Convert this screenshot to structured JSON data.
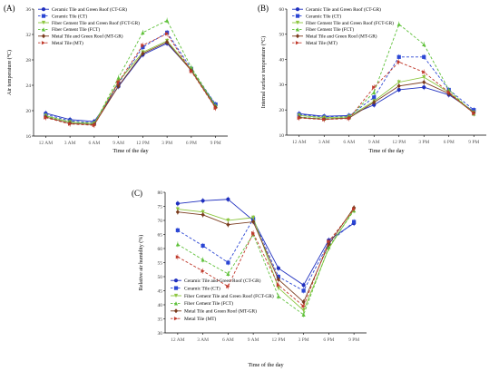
{
  "chart_data": [
    {
      "panel": "(A)",
      "type": "line",
      "categories": [
        "12 AM",
        "3 AM",
        "6 AM",
        "9 AM",
        "12 PM",
        "3 PM",
        "6 PM",
        "9 PM"
      ],
      "ylabel": "Air temperature (°C)",
      "xlabel": "Time of the day",
      "ylim": [
        16,
        36
      ],
      "yticks": [
        16,
        20,
        24,
        28,
        32,
        36
      ],
      "grid": false,
      "legend_position": "top-left",
      "series": [
        {
          "name": "Ceramic Tile and Green Roof (CT-GR)",
          "color": "#1f2fbf",
          "dash": "solid",
          "values": [
            19.6,
            18.6,
            18.3,
            23.8,
            28.8,
            30.6,
            26.4,
            20.9
          ]
        },
        {
          "name": "Ceramic Tile (CT)",
          "color": "#2b46d4",
          "dash": "dashed",
          "values": [
            19.4,
            18.4,
            18.1,
            24.3,
            30.0,
            32.3,
            26.6,
            21.0
          ]
        },
        {
          "name": "Fiber Cement Tile and Green Roof (FCT-GR)",
          "color": "#8cc63f",
          "dash": "solid",
          "values": [
            19.2,
            18.2,
            18.0,
            24.6,
            29.2,
            31.0,
            26.5,
            20.6
          ]
        },
        {
          "name": "Fiber Cement Tile (FCT)",
          "color": "#5fc13a",
          "dash": "dashed",
          "values": [
            19.1,
            18.2,
            17.9,
            25.2,
            32.3,
            34.2,
            26.8,
            20.8
          ]
        },
        {
          "name": "Metal Tile and Green Roof (MT-GR)",
          "color": "#7a3b1e",
          "dash": "solid",
          "values": [
            19.0,
            18.0,
            17.8,
            23.9,
            29.0,
            30.8,
            26.3,
            20.5
          ]
        },
        {
          "name": "Metal Tile (MT)",
          "color": "#c0392b",
          "dash": "dashed",
          "values": [
            18.9,
            17.9,
            17.7,
            24.5,
            30.3,
            32.1,
            26.2,
            20.4
          ]
        }
      ]
    },
    {
      "panel": "(B)",
      "type": "line",
      "categories": [
        "12 AM",
        "3 AM",
        "6 AM",
        "9 AM",
        "12 PM",
        "3 PM",
        "6 PM",
        "9 PM"
      ],
      "ylabel": "Internal surface temperature (°C)",
      "xlabel": "Time of the day",
      "ylim": [
        10,
        60
      ],
      "yticks": [
        10,
        20,
        30,
        40,
        50,
        60
      ],
      "grid": false,
      "legend_position": "top-left",
      "series": [
        {
          "name": "Ceramic Tile and Green Roof (CT-GR)",
          "color": "#1f2fbf",
          "dash": "solid",
          "values": [
            18.5,
            17.5,
            17.8,
            22.0,
            28.0,
            29.0,
            26.0,
            19.5
          ]
        },
        {
          "name": "Ceramic Tile (CT)",
          "color": "#2b46d4",
          "dash": "dashed",
          "values": [
            18.2,
            17.2,
            17.6,
            25.0,
            41.0,
            41.0,
            28.0,
            20.0
          ]
        },
        {
          "name": "Fiber Cement Tile and Green Roof (FCT-GR)",
          "color": "#8cc63f",
          "dash": "solid",
          "values": [
            17.8,
            16.9,
            17.3,
            23.5,
            31.0,
            33.0,
            27.0,
            19.0
          ]
        },
        {
          "name": "Fiber Cement Tile (FCT)",
          "color": "#5fc13a",
          "dash": "dashed",
          "values": [
            17.2,
            16.5,
            17.0,
            27.0,
            54.0,
            46.0,
            28.0,
            18.5
          ]
        },
        {
          "name": "Metal Tile and Green Roof (MT-GR)",
          "color": "#7a3b1e",
          "dash": "solid",
          "values": [
            17.0,
            16.3,
            16.8,
            23.0,
            29.5,
            31.0,
            26.5,
            18.8
          ]
        },
        {
          "name": "Metal Tile (MT)",
          "color": "#c0392b",
          "dash": "dashed",
          "values": [
            16.8,
            16.2,
            16.6,
            29.0,
            39.0,
            35.0,
            27.0,
            18.6
          ]
        }
      ]
    },
    {
      "panel": "(C)",
      "type": "line",
      "categories": [
        "12 AM",
        "3 AM",
        "6 AM",
        "9 AM",
        "12 PM",
        "3 PM",
        "6 PM",
        "9 PM"
      ],
      "ylabel": "Relative air humidity (%)",
      "xlabel": "Time of the day",
      "ylim": [
        30,
        80
      ],
      "yticks": [
        30,
        35,
        40,
        45,
        50,
        55,
        60,
        65,
        70,
        75,
        80
      ],
      "grid": false,
      "legend_position": "bottom-left",
      "series": [
        {
          "name": "Ceramic Tile and Green Roof (CT-GR)",
          "color": "#1f2fbf",
          "dash": "solid",
          "values": [
            76.0,
            77.0,
            77.5,
            70.0,
            53.0,
            47.0,
            63.0,
            69.0
          ]
        },
        {
          "name": "Ceramic Tile (CT)",
          "color": "#2b46d4",
          "dash": "dashed",
          "values": [
            66.5,
            61.0,
            55.0,
            70.5,
            50.0,
            45.0,
            62.0,
            69.5
          ]
        },
        {
          "name": "Fiber Cement Tile and Green Roof (FCT-GR)",
          "color": "#8cc63f",
          "dash": "solid",
          "values": [
            74.0,
            73.0,
            70.0,
            71.0,
            46.0,
            38.0,
            60.0,
            74.0
          ]
        },
        {
          "name": "Fiber Cement Tile (FCT)",
          "color": "#5fc13a",
          "dash": "dashed",
          "values": [
            61.5,
            56.0,
            51.0,
            65.0,
            43.0,
            36.5,
            60.5,
            73.5
          ]
        },
        {
          "name": "Metal Tile and Green Roof (MT-GR)",
          "color": "#7a3b1e",
          "dash": "solid",
          "values": [
            73.0,
            72.0,
            68.5,
            69.5,
            49.0,
            41.0,
            61.5,
            74.5
          ]
        },
        {
          "name": "Metal Tile (MT)",
          "color": "#c0392b",
          "dash": "dashed",
          "values": [
            57.0,
            52.0,
            46.5,
            65.5,
            47.0,
            39.5,
            62.5,
            74.0
          ]
        }
      ]
    }
  ]
}
